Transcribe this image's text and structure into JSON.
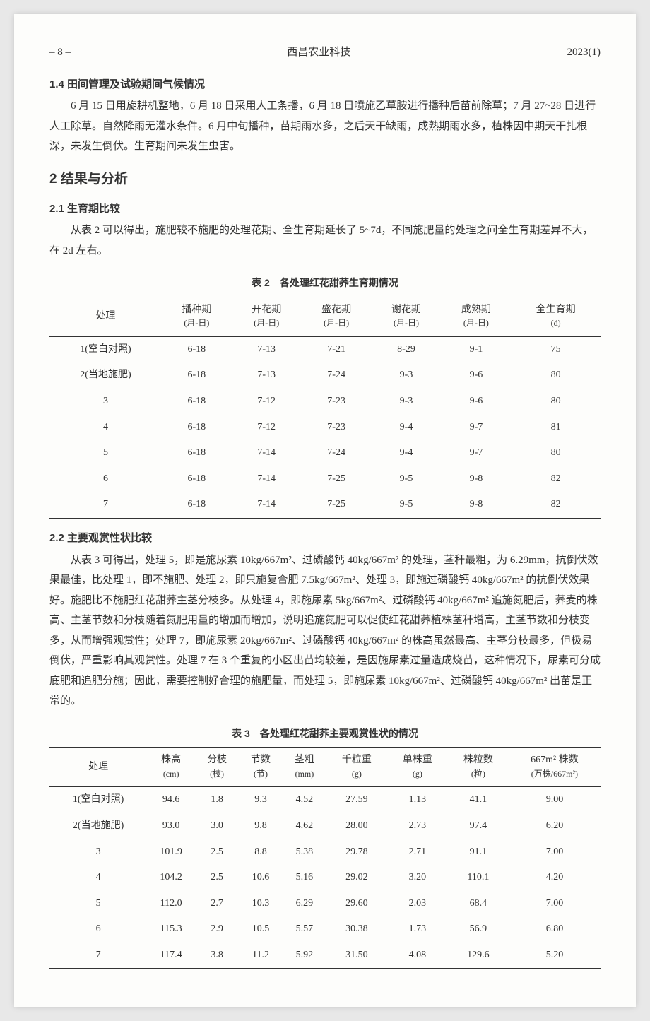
{
  "header": {
    "page": "– 8 –",
    "journal": "西昌农业科技",
    "issue": "2023(1)"
  },
  "s14": {
    "title": "1.4 田间管理及试验期间气候情况",
    "p1": "6 月 15 日用旋耕机整地，6 月 18 日采用人工条播，6 月 18 日喷施乙草胺进行播种后苗前除草；7 月 27~28 日进行人工除草。自然降雨无灌水条件。6 月中旬播种，苗期雨水多，之后天干缺雨，成熟期雨水多，植株因中期天干扎根深，未发生倒伏。生育期间未发生虫害。"
  },
  "s2": {
    "title": "2  结果与分析"
  },
  "s21": {
    "title": "2.1 生育期比较",
    "p1": "从表 2 可以得出，施肥较不施肥的处理花期、全生育期延长了 5~7d，不同施肥量的处理之间全生育期差异不大，在 2d 左右。"
  },
  "t2": {
    "title": "表 2　各处理红花甜荞生育期情况",
    "columns": [
      {
        "l1": "处理",
        "l2": ""
      },
      {
        "l1": "播种期",
        "l2": "(月-日)"
      },
      {
        "l1": "开花期",
        "l2": "(月-日)"
      },
      {
        "l1": "盛花期",
        "l2": "(月-日)"
      },
      {
        "l1": "谢花期",
        "l2": "(月-日)"
      },
      {
        "l1": "成熟期",
        "l2": "(月-日)"
      },
      {
        "l1": "全生育期",
        "l2": "(d)"
      }
    ],
    "rows": [
      [
        "1(空白对照)",
        "6-18",
        "7-13",
        "7-21",
        "8-29",
        "9-1",
        "75"
      ],
      [
        "2(当地施肥)",
        "6-18",
        "7-13",
        "7-24",
        "9-3",
        "9-6",
        "80"
      ],
      [
        "3",
        "6-18",
        "7-12",
        "7-23",
        "9-3",
        "9-6",
        "80"
      ],
      [
        "4",
        "6-18",
        "7-12",
        "7-23",
        "9-4",
        "9-7",
        "81"
      ],
      [
        "5",
        "6-18",
        "7-14",
        "7-24",
        "9-4",
        "9-7",
        "80"
      ],
      [
        "6",
        "6-18",
        "7-14",
        "7-25",
        "9-5",
        "9-8",
        "82"
      ],
      [
        "7",
        "6-18",
        "7-14",
        "7-25",
        "9-5",
        "9-8",
        "82"
      ]
    ]
  },
  "s22": {
    "title": "2.2 主要观赏性状比较",
    "p1": "从表 3 可得出，处理 5，即是施尿素 10kg/667m²、过磷酸钙 40kg/667m² 的处理，茎秆最粗，为 6.29mm，抗倒伏效果最佳，比处理 1，即不施肥、处理 2，即只施复合肥 7.5kg/667m²、处理 3，即施过磷酸钙 40kg/667m² 的抗倒伏效果好。施肥比不施肥红花甜荞主茎分枝多。从处理 4，即施尿素 5kg/667m²、过磷酸钙 40kg/667m² 追施氮肥后，荞麦的株高、主茎节数和分枝随着氮肥用量的增加而增加，说明追施氮肥可以促使红花甜荞植株茎秆增高，主茎节数和分枝变多，从而增强观赏性；处理 7，即施尿素 20kg/667m²、过磷酸钙 40kg/667m² 的株高虽然最高、主茎分枝最多，但极易倒伏，严重影响其观赏性。处理 7 在 3 个重复的小区出苗均较差，是因施尿素过量造成烧苗，这种情况下，尿素可分成底肥和追肥分施；因此，需要控制好合理的施肥量，而处理 5，即施尿素 10kg/667m²、过磷酸钙 40kg/667m² 出苗是正常的。"
  },
  "t3": {
    "title": "表 3　各处理红花甜荞主要观赏性状的情况",
    "columns": [
      {
        "l1": "处理",
        "l2": ""
      },
      {
        "l1": "株高",
        "l2": "(cm)"
      },
      {
        "l1": "分枝",
        "l2": "(枝)"
      },
      {
        "l1": "节数",
        "l2": "(节)"
      },
      {
        "l1": "茎粗",
        "l2": "(mm)"
      },
      {
        "l1": "千粒重",
        "l2": "(g)"
      },
      {
        "l1": "单株重",
        "l2": "(g)"
      },
      {
        "l1": "株粒数",
        "l2": "(粒)"
      },
      {
        "l1": "667m² 株数",
        "l2": "(万株/667m²)"
      }
    ],
    "rows": [
      [
        "1(空白对照)",
        "94.6",
        "1.8",
        "9.3",
        "4.52",
        "27.59",
        "1.13",
        "41.1",
        "9.00"
      ],
      [
        "2(当地施肥)",
        "93.0",
        "3.0",
        "9.8",
        "4.62",
        "28.00",
        "2.73",
        "97.4",
        "6.20"
      ],
      [
        "3",
        "101.9",
        "2.5",
        "8.8",
        "5.38",
        "29.78",
        "2.71",
        "91.1",
        "7.00"
      ],
      [
        "4",
        "104.2",
        "2.5",
        "10.6",
        "5.16",
        "29.02",
        "3.20",
        "110.1",
        "4.20"
      ],
      [
        "5",
        "112.0",
        "2.7",
        "10.3",
        "6.29",
        "29.60",
        "2.03",
        "68.4",
        "7.00"
      ],
      [
        "6",
        "115.3",
        "2.9",
        "10.5",
        "5.57",
        "30.38",
        "1.73",
        "56.9",
        "6.80"
      ],
      [
        "7",
        "117.4",
        "3.8",
        "11.2",
        "5.92",
        "31.50",
        "4.08",
        "129.6",
        "5.20"
      ]
    ]
  }
}
